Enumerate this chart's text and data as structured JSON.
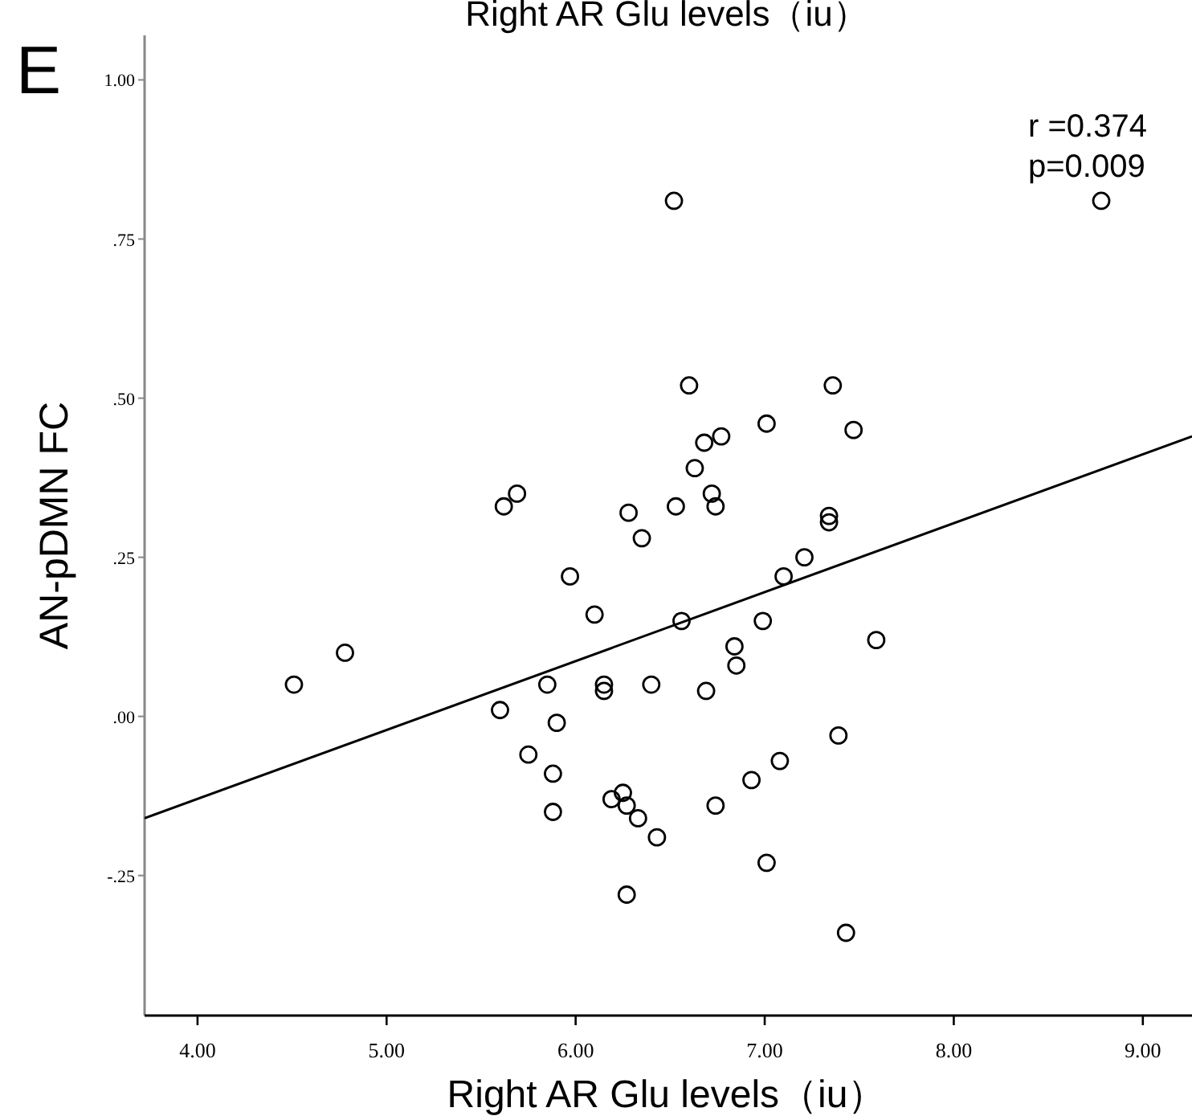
{
  "chart_data": {
    "type": "scatter",
    "title": "Right AR Glu levels（iu）",
    "xlabel": "Right AR Glu levels（iu）",
    "ylabel": "AN-pDMN FC",
    "annotations": [
      "E",
      "r =0.374",
      "p=0.009"
    ],
    "xlim": [
      3.72,
      9.26
    ],
    "ylim": [
      -0.47,
      1.07
    ],
    "xticks": [
      {
        "value": 4,
        "label": "4.00"
      },
      {
        "value": 5,
        "label": "5.00"
      },
      {
        "value": 6,
        "label": "6.00"
      },
      {
        "value": 7,
        "label": "7.00"
      },
      {
        "value": 8,
        "label": "8.00"
      },
      {
        "value": 9,
        "label": "9.00"
      }
    ],
    "yticks": [
      {
        "value": -0.25,
        "label": "-.25"
      },
      {
        "value": 0,
        "label": ".00"
      },
      {
        "value": 0.25,
        "label": ".25"
      },
      {
        "value": 0.5,
        "label": ".50"
      },
      {
        "value": 0.75,
        "label": ".75"
      },
      {
        "value": 1,
        "label": "1.00"
      }
    ],
    "grid": false,
    "legend": false,
    "marker": "circle",
    "series": [
      {
        "color": "#000000",
        "x": [
          6.52,
          8.78,
          6.6,
          7.36,
          7.01,
          7.47,
          6.68,
          6.77,
          6.63,
          6.53,
          6.72,
          6.74,
          7.34,
          7.34,
          5.62,
          5.69,
          6.28,
          6.35,
          5.97,
          6.1,
          4.78,
          4.51,
          5.85,
          6.15,
          6.15,
          6.4,
          5.6,
          5.9,
          5.75,
          5.88,
          6.19,
          6.25,
          6.27,
          6.33,
          5.88,
          6.43,
          6.27,
          7.21,
          7.1,
          6.56,
          6.99,
          7.59,
          6.84,
          6.85,
          6.69,
          7.39,
          7.08,
          6.93,
          6.74,
          7.01,
          7.43
        ],
        "values": [
          0.81,
          0.81,
          0.52,
          0.52,
          0.46,
          0.45,
          0.43,
          0.44,
          0.39,
          0.33,
          0.35,
          0.33,
          0.315,
          0.305,
          0.33,
          0.35,
          0.32,
          0.28,
          0.22,
          0.16,
          0.1,
          0.05,
          0.05,
          0.05,
          0.04,
          0.05,
          0.01,
          -0.01,
          -0.06,
          -0.09,
          -0.13,
          -0.12,
          -0.14,
          -0.16,
          -0.15,
          -0.19,
          -0.28,
          0.25,
          0.22,
          0.15,
          0.15,
          0.12,
          0.11,
          0.08,
          0.04,
          -0.03,
          -0.07,
          -0.1,
          -0.14,
          -0.23,
          -0.34
        ]
      },
      {
        "type": "line",
        "color": "#000000",
        "marker": "none",
        "x": [
          3.72,
          9.26
        ],
        "values": [
          -0.16,
          0.44
        ]
      }
    ]
  }
}
